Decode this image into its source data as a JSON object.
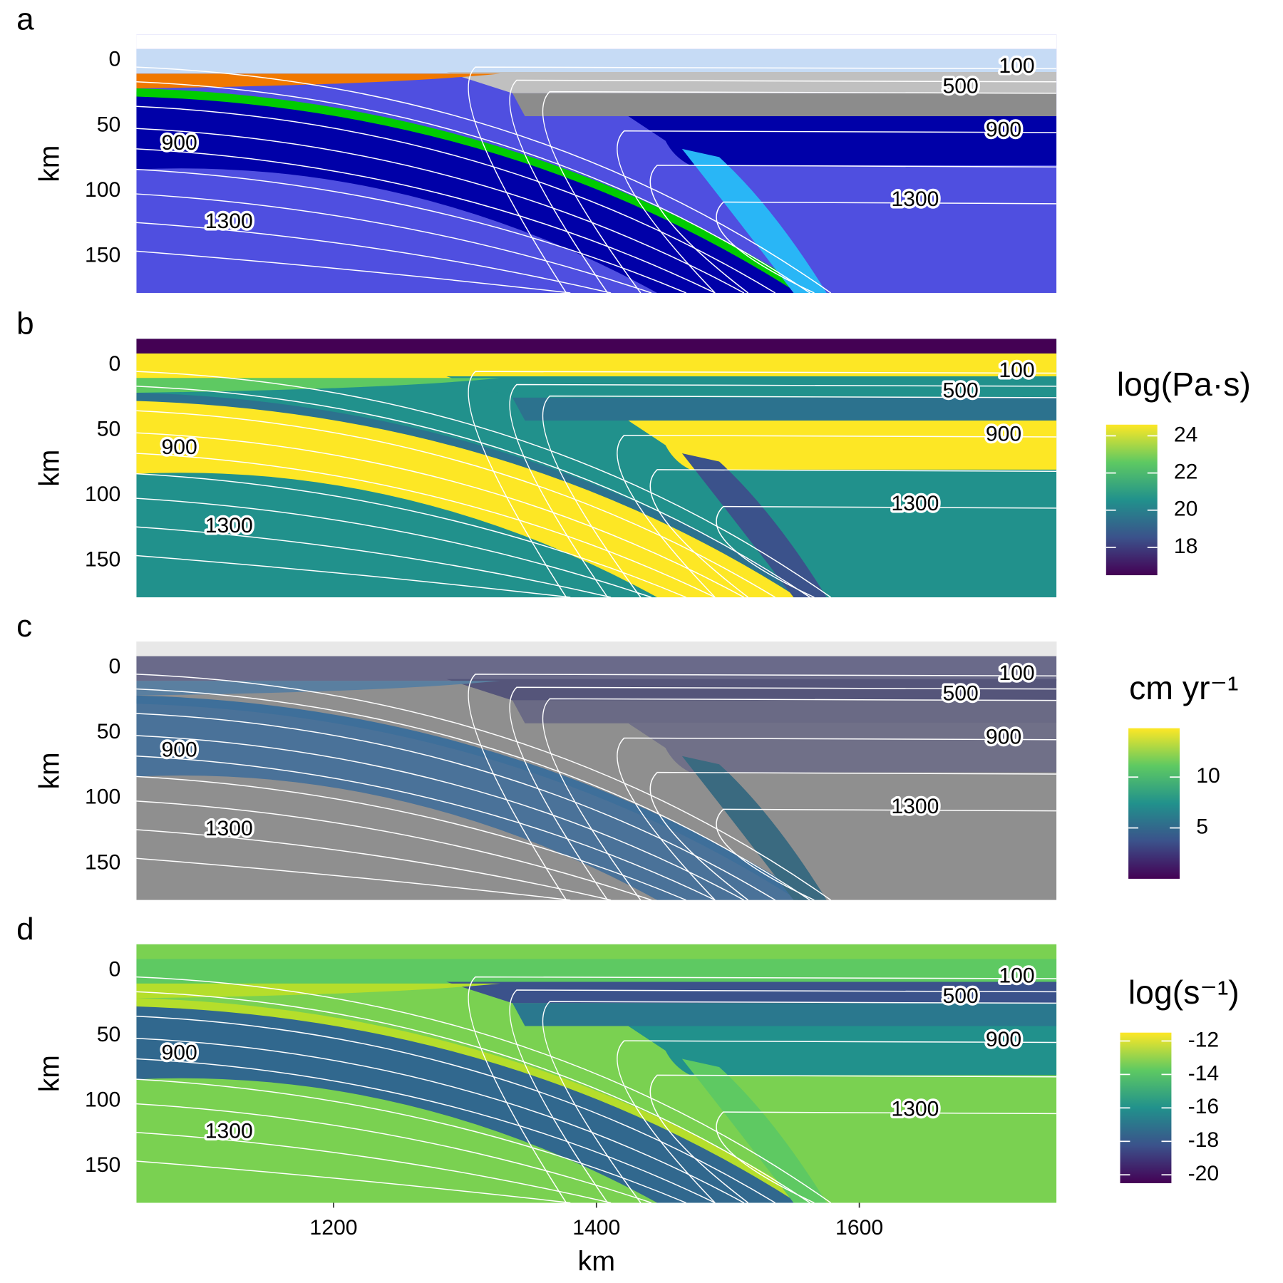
{
  "chart_data": [
    {
      "type": "field",
      "panel_label": "a",
      "y_label": "km",
      "xlim": [
        1050,
        1750
      ],
      "ylim": [
        -20,
        178
      ],
      "y_reversed": true,
      "yticks": [
        0,
        50,
        100,
        150
      ],
      "contour_labels": [
        100,
        500,
        900,
        1300
      ],
      "region_colors": [
        "#4f4fe0",
        "#ffffff",
        "#c6dbf5",
        "#c0c0c0",
        "#8c8c8c",
        "#0000a8",
        "#0000a8",
        "#00cc00",
        "#f07800",
        "#29b6f6"
      ]
    },
    {
      "type": "field",
      "panel_label": "b",
      "y_label": "km",
      "xlim": [
        1050,
        1750
      ],
      "ylim": [
        -20,
        178
      ],
      "y_reversed": true,
      "yticks": [
        0,
        50,
        100,
        150
      ],
      "contour_labels": [
        100,
        500,
        900,
        1300
      ],
      "region_colors": [
        "#21918c",
        "#440154",
        "#fde725",
        "#21918c",
        "#2c728e",
        "#fde725",
        "#fde725",
        "#2c728e",
        "#5ec962",
        "#3b528b"
      ],
      "colorbar": {
        "title": "log(Pa·s)",
        "lim": [
          16.5,
          24.6
        ],
        "ticks": [
          18,
          20,
          22,
          24
        ],
        "colormap": [
          "#440154",
          "#3b528b",
          "#21918c",
          "#5ec962",
          "#fde725"
        ]
      }
    },
    {
      "type": "field",
      "panel_label": "c",
      "y_label": "km",
      "xlim": [
        1050,
        1750
      ],
      "ylim": [
        -20,
        178
      ],
      "y_reversed": true,
      "yticks": [
        0,
        50,
        100,
        150
      ],
      "contour_labels": [
        100,
        500,
        900,
        1300
      ],
      "region_colors": [
        "#8f8f8f",
        "#e8e8e8",
        "#6a6a8a",
        "#55557a",
        "#6a6a85",
        "#707088",
        "#4a7299",
        "#3e6f9a",
        "#5a7fa0",
        "#3a6a80"
      ],
      "colorbar": {
        "title": "cm yr⁻¹",
        "lim": [
          0,
          14.8
        ],
        "ticks": [
          5,
          10
        ],
        "colormap": [
          "#440154",
          "#3b528b",
          "#21918c",
          "#5ec962",
          "#fde725"
        ]
      }
    },
    {
      "type": "field",
      "panel_label": "d",
      "y_label": "km",
      "x_label": "km",
      "xlim": [
        1050,
        1750
      ],
      "ylim": [
        -20,
        178
      ],
      "y_reversed": true,
      "yticks": [
        0,
        50,
        100,
        150
      ],
      "xticks": [
        1200,
        1400,
        1600
      ],
      "contour_labels": [
        100,
        500,
        900,
        1300
      ],
      "region_colors": [
        "#7ad151",
        "#7ad151",
        "#5ec962",
        "#3b528b",
        "#2a788e",
        "#21918c",
        "#31688e",
        "#b5de2b",
        "#b5de2b",
        "#5ec962"
      ],
      "colorbar": {
        "title": "log(s⁻¹)",
        "lim": [
          -20.5,
          -11.5
        ],
        "ticks": [
          -20,
          -18,
          -16,
          -14,
          -12
        ],
        "colormap": [
          "#440154",
          "#3b528b",
          "#21918c",
          "#5ec962",
          "#fde725"
        ]
      }
    }
  ]
}
